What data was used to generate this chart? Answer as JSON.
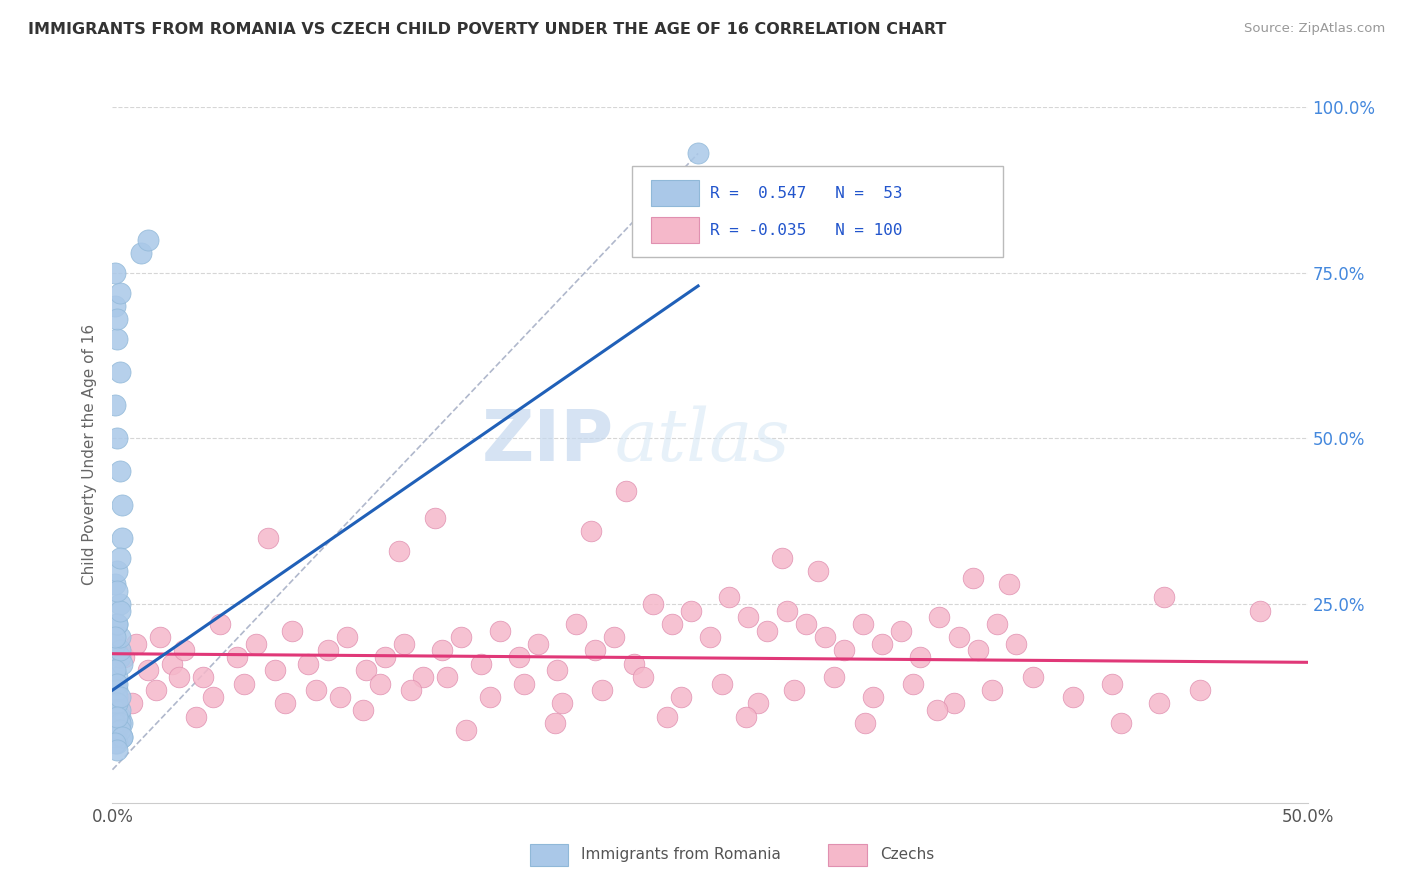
{
  "title": "IMMIGRANTS FROM ROMANIA VS CZECH CHILD POVERTY UNDER THE AGE OF 16 CORRELATION CHART",
  "source": "Source: ZipAtlas.com",
  "ylabel": "Child Poverty Under the Age of 16",
  "xlim": [
    0.0,
    0.5
  ],
  "ylim": [
    -0.05,
    1.0
  ],
  "xtick_labels": [
    "0.0%",
    "50.0%"
  ],
  "xtick_positions": [
    0.0,
    0.5
  ],
  "ytick_labels": [
    "25.0%",
    "50.0%",
    "75.0%",
    "100.0%"
  ],
  "ytick_positions": [
    0.25,
    0.5,
    0.75,
    1.0
  ],
  "romania_color": "#aac8e8",
  "czech_color": "#f5b8ca",
  "romania_line_color": "#2060b8",
  "czech_line_color": "#e03878",
  "romania_scatter_x": [
    0.002,
    0.003,
    0.001,
    0.004,
    0.002,
    0.003,
    0.001,
    0.002,
    0.003,
    0.002,
    0.001,
    0.003,
    0.002,
    0.004,
    0.001,
    0.002,
    0.003,
    0.002,
    0.001,
    0.003,
    0.002,
    0.003,
    0.001,
    0.002,
    0.004,
    0.002,
    0.003,
    0.001,
    0.002,
    0.003,
    0.004,
    0.002,
    0.003,
    0.001,
    0.002,
    0.003,
    0.002,
    0.004,
    0.001,
    0.002,
    0.003,
    0.002,
    0.001,
    0.003,
    0.002,
    0.004,
    0.001,
    0.003,
    0.002,
    0.001,
    0.012,
    0.015,
    0.245
  ],
  "romania_scatter_y": [
    0.14,
    0.17,
    0.19,
    0.16,
    0.12,
    0.18,
    0.15,
    0.13,
    0.2,
    0.11,
    0.09,
    0.08,
    0.1,
    0.07,
    0.06,
    0.08,
    0.09,
    0.1,
    0.07,
    0.11,
    0.22,
    0.25,
    0.28,
    0.3,
    0.35,
    0.22,
    0.24,
    0.2,
    0.27,
    0.32,
    0.05,
    0.06,
    0.07,
    0.05,
    0.04,
    0.06,
    0.08,
    0.05,
    0.04,
    0.03,
    0.45,
    0.5,
    0.55,
    0.6,
    0.65,
    0.4,
    0.7,
    0.72,
    0.68,
    0.75,
    0.78,
    0.8,
    0.93
  ],
  "czech_scatter_x": [
    0.005,
    0.01,
    0.015,
    0.02,
    0.025,
    0.03,
    0.038,
    0.045,
    0.052,
    0.06,
    0.068,
    0.075,
    0.082,
    0.09,
    0.098,
    0.106,
    0.114,
    0.122,
    0.13,
    0.138,
    0.146,
    0.154,
    0.162,
    0.17,
    0.178,
    0.186,
    0.194,
    0.202,
    0.21,
    0.218,
    0.226,
    0.234,
    0.242,
    0.25,
    0.258,
    0.266,
    0.274,
    0.282,
    0.29,
    0.298,
    0.306,
    0.314,
    0.322,
    0.33,
    0.338,
    0.346,
    0.354,
    0.362,
    0.37,
    0.378,
    0.008,
    0.018,
    0.028,
    0.042,
    0.055,
    0.072,
    0.085,
    0.095,
    0.112,
    0.125,
    0.14,
    0.158,
    0.172,
    0.188,
    0.205,
    0.222,
    0.238,
    0.255,
    0.27,
    0.285,
    0.302,
    0.318,
    0.335,
    0.352,
    0.368,
    0.385,
    0.402,
    0.418,
    0.438,
    0.455,
    0.065,
    0.135,
    0.215,
    0.295,
    0.375,
    0.44,
    0.12,
    0.2,
    0.28,
    0.36,
    0.035,
    0.105,
    0.185,
    0.265,
    0.345,
    0.422,
    0.148,
    0.232,
    0.315,
    0.48
  ],
  "czech_scatter_y": [
    0.17,
    0.19,
    0.15,
    0.2,
    0.16,
    0.18,
    0.14,
    0.22,
    0.17,
    0.19,
    0.15,
    0.21,
    0.16,
    0.18,
    0.2,
    0.15,
    0.17,
    0.19,
    0.14,
    0.18,
    0.2,
    0.16,
    0.21,
    0.17,
    0.19,
    0.15,
    0.22,
    0.18,
    0.2,
    0.16,
    0.25,
    0.22,
    0.24,
    0.2,
    0.26,
    0.23,
    0.21,
    0.24,
    0.22,
    0.2,
    0.18,
    0.22,
    0.19,
    0.21,
    0.17,
    0.23,
    0.2,
    0.18,
    0.22,
    0.19,
    0.1,
    0.12,
    0.14,
    0.11,
    0.13,
    0.1,
    0.12,
    0.11,
    0.13,
    0.12,
    0.14,
    0.11,
    0.13,
    0.1,
    0.12,
    0.14,
    0.11,
    0.13,
    0.1,
    0.12,
    0.14,
    0.11,
    0.13,
    0.1,
    0.12,
    0.14,
    0.11,
    0.13,
    0.1,
    0.12,
    0.35,
    0.38,
    0.42,
    0.3,
    0.28,
    0.26,
    0.33,
    0.36,
    0.32,
    0.29,
    0.08,
    0.09,
    0.07,
    0.08,
    0.09,
    0.07,
    0.06,
    0.08,
    0.07,
    0.24
  ],
  "background_color": "#ffffff",
  "grid_color": "#cccccc"
}
